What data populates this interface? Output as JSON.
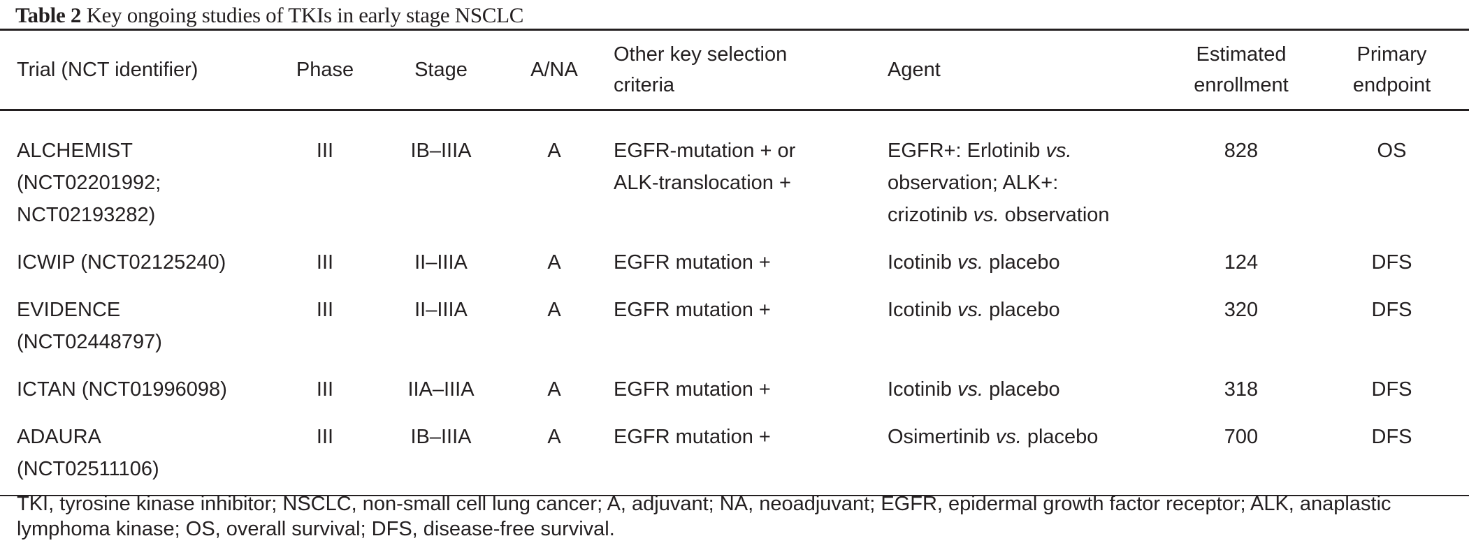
{
  "title": {
    "label": "Table 2",
    "text": "Key ongoing studies of TKIs in early stage NSCLC"
  },
  "columns": [
    "Trial (NCT identifier)",
    "Phase",
    "Stage",
    "A/NA",
    "Other key selection criteria",
    "Agent",
    "Estimated enrollment",
    "Primary endpoint"
  ],
  "rows": [
    {
      "trial": "ALCHEMIST (NCT02201992; NCT02193282)",
      "phase": "III",
      "stage": "IB–IIIA",
      "ana": "A",
      "criteria": "EGFR-mutation + or ALK-translocation +",
      "agent": [
        "EGFR+: Erlotinib ",
        "vs.",
        " observation; ALK+: crizotinib ",
        "vs.",
        " observation"
      ],
      "enrollment": "828",
      "endpoint": "OS"
    },
    {
      "trial": "ICWIP (NCT02125240)",
      "phase": "III",
      "stage": "II–IIIA",
      "ana": "A",
      "criteria": "EGFR mutation +",
      "agent": [
        "Icotinib ",
        "vs.",
        " placebo"
      ],
      "enrollment": "124",
      "endpoint": "DFS"
    },
    {
      "trial": "EVIDENCE (NCT02448797)",
      "phase": "III",
      "stage": "II–IIIA",
      "ana": "A",
      "criteria": "EGFR mutation +",
      "agent": [
        "Icotinib ",
        "vs.",
        " placebo"
      ],
      "enrollment": "320",
      "endpoint": "DFS"
    },
    {
      "trial": "ICTAN (NCT01996098)",
      "phase": "III",
      "stage": "IIA–IIIA",
      "ana": "A",
      "criteria": "EGFR mutation +",
      "agent": [
        "Icotinib ",
        "vs.",
        " placebo"
      ],
      "enrollment": "318",
      "endpoint": "DFS"
    },
    {
      "trial": "ADAURA (NCT02511106)",
      "phase": "III",
      "stage": "IB–IIIA",
      "ana": "A",
      "criteria": "EGFR mutation +",
      "agent": [
        "Osimertinib ",
        "vs.",
        " placebo"
      ],
      "enrollment": "700",
      "endpoint": "DFS"
    }
  ],
  "footnote": "TKI, tyrosine kinase inhibitor; NSCLC, non-small cell lung cancer; A, adjuvant; NA, neoadjuvant; EGFR, epidermal growth factor receptor; ALK, anaplastic lymphoma kinase; OS, overall survival; DFS, disease-free survival."
}
